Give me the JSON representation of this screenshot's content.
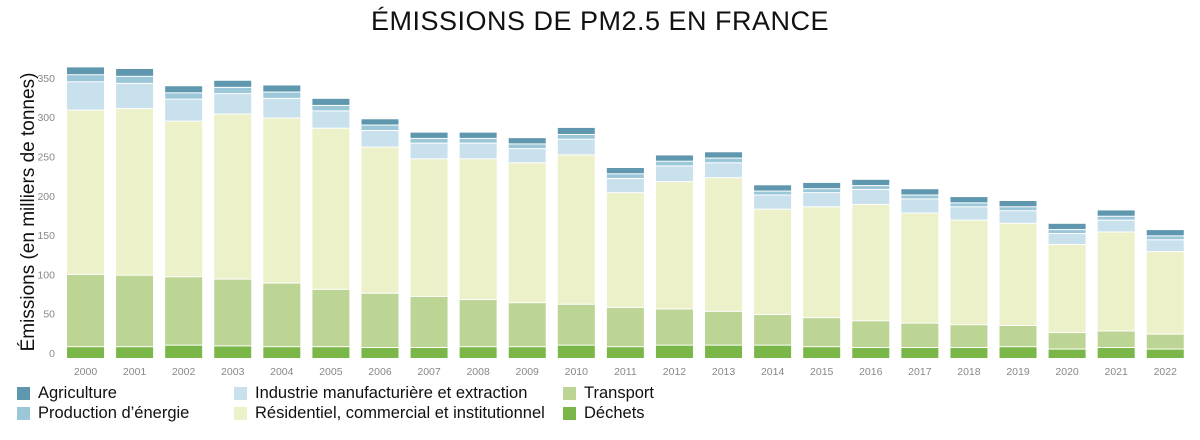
{
  "chart_data": {
    "type": "bar",
    "stacked": true,
    "title": "ÉMISSIONS DE PM2.5 EN FRANCE",
    "ylabel": "Émissions (en milliers de tonnes)",
    "xlabel": "",
    "ylim": [
      0,
      350
    ],
    "yticks": [
      0,
      50,
      100,
      150,
      200,
      250,
      300,
      350
    ],
    "grid": false,
    "legend_position": "bottom",
    "categories": [
      "2000",
      "2001",
      "2002",
      "2003",
      "2004",
      "2005",
      "2006",
      "2007",
      "2008",
      "2009",
      "2010",
      "2011",
      "2012",
      "2013",
      "2014",
      "2015",
      "2016",
      "2017",
      "2018",
      "2019",
      "2020",
      "2021",
      "2022"
    ],
    "series": [
      {
        "name": "Déchets",
        "color": "#7ab648",
        "values": [
          15,
          15,
          17,
          16,
          15,
          15,
          14,
          14,
          15,
          15,
          17,
          15,
          17,
          17,
          17,
          15,
          14,
          14,
          14,
          15,
          12,
          14,
          12
        ]
      },
      {
        "name": "Transport",
        "color": "#bcd595",
        "values": [
          92,
          91,
          87,
          85,
          81,
          73,
          69,
          65,
          60,
          56,
          52,
          50,
          46,
          43,
          39,
          37,
          34,
          31,
          29,
          27,
          21,
          21,
          19
        ]
      },
      {
        "name": "Résidentiel, commercial et institutionnel",
        "color": "#ecf1c9",
        "values": [
          209,
          212,
          198,
          210,
          210,
          205,
          186,
          175,
          179,
          178,
          190,
          146,
          162,
          170,
          134,
          141,
          148,
          140,
          133,
          130,
          112,
          126,
          105
        ]
      },
      {
        "name": "Industrie manufacturière et extraction",
        "color": "#c8e1ec",
        "values": [
          36,
          32,
          28,
          26,
          25,
          22,
          21,
          20,
          20,
          18,
          20,
          18,
          20,
          19,
          18,
          18,
          19,
          18,
          17,
          16,
          14,
          15,
          15
        ]
      },
      {
        "name": "Production d’énergie",
        "color": "#9cc7d9",
        "values": [
          9,
          9,
          8,
          8,
          8,
          7,
          7,
          6,
          6,
          6,
          6,
          6,
          6,
          6,
          5,
          5,
          5,
          5,
          5,
          5,
          5,
          5,
          5
        ]
      },
      {
        "name": "Agriculture",
        "color": "#5f97ae",
        "values": [
          10,
          10,
          9,
          9,
          9,
          9,
          8,
          8,
          8,
          8,
          9,
          8,
          8,
          8,
          8,
          8,
          8,
          8,
          8,
          8,
          8,
          8,
          8
        ]
      }
    ]
  },
  "legend": {
    "items": [
      {
        "label": "Agriculture",
        "color": "#5f97ae"
      },
      {
        "label": "Production d’énergie",
        "color": "#9cc7d9"
      },
      {
        "label": "Industrie manufacturière et extraction",
        "color": "#c8e1ec"
      },
      {
        "label": "Résidentiel, commercial et institutionnel",
        "color": "#ecf1c9"
      },
      {
        "label": "Transport",
        "color": "#bcd595"
      },
      {
        "label": "Déchets",
        "color": "#7ab648"
      }
    ]
  }
}
